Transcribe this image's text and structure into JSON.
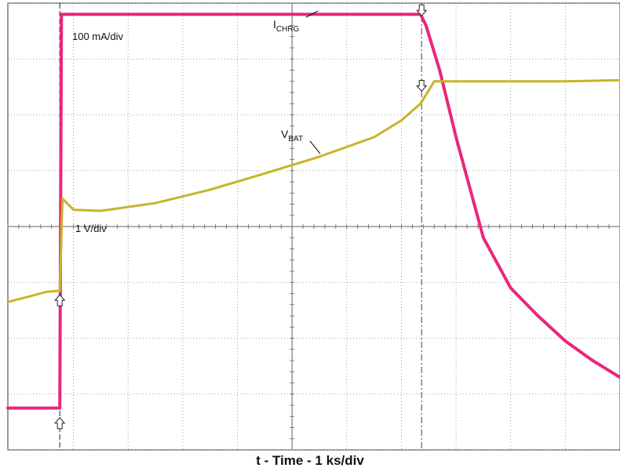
{
  "chart_data": {
    "type": "line",
    "title": "",
    "xlabel": "t - Time - 1 ks/div",
    "grid": true,
    "x_unit": "div",
    "y_unit": "div",
    "x_range": [
      -0.2,
      11.0
    ],
    "y_range": [
      -4.0,
      4.0
    ],
    "series": [
      {
        "name": "ICHRG",
        "color": "#e8287a",
        "scale_label": "100 mA/div",
        "label_text": "I",
        "label_sub": "CHRG",
        "x": [
          -0.2,
          0.75,
          0.78,
          7.35,
          7.45,
          7.7,
          8.0,
          8.5,
          9.0,
          9.5,
          10.0,
          10.5,
          11.0
        ],
        "y": [
          -3.25,
          -3.25,
          3.8,
          3.8,
          3.6,
          2.8,
          1.6,
          -0.2,
          -1.1,
          -1.6,
          -2.05,
          -2.4,
          -2.7
        ]
      },
      {
        "name": "VBAT",
        "color": "#c8b428",
        "scale_label": "1 V/div",
        "label_text": "V",
        "label_sub": "BAT",
        "x": [
          -0.2,
          0.2,
          0.5,
          0.75,
          0.8,
          1.0,
          1.5,
          2.5,
          3.5,
          4.5,
          5.5,
          6.5,
          7.0,
          7.35,
          7.6,
          8.0,
          9.0,
          10.0,
          11.0
        ],
        "y": [
          -1.35,
          -1.25,
          -1.17,
          -1.15,
          0.5,
          0.3,
          0.28,
          0.42,
          0.66,
          0.95,
          1.25,
          1.6,
          1.9,
          2.2,
          2.6,
          2.6,
          2.6,
          2.6,
          2.62
        ]
      }
    ],
    "markers": [
      {
        "series": "ICHRG",
        "x": 7.37,
        "y": 3.8,
        "direction": "down"
      },
      {
        "series": "VBAT",
        "x": 7.37,
        "y": 2.45,
        "direction": "down"
      },
      {
        "series": "VBAT",
        "x": 0.75,
        "y": -1.25,
        "direction": "up"
      },
      {
        "series": "ICHRG",
        "x": 0.75,
        "y": -3.45,
        "direction": "up"
      }
    ],
    "cursors_x": [
      0.75,
      7.37
    ]
  }
}
